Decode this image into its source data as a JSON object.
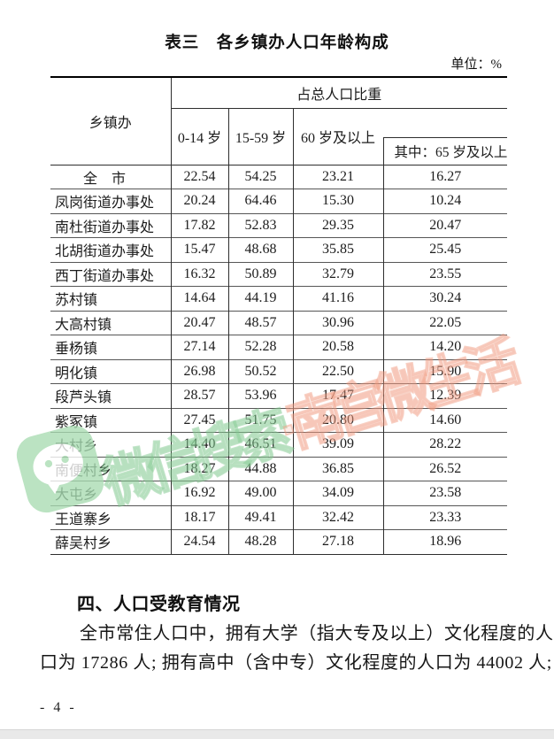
{
  "doc": {
    "title": "表三　各乡镇办人口年龄构成",
    "unit_label": "单位：%",
    "page_number": "- 4 -"
  },
  "table": {
    "header": {
      "region_col": "乡镇办",
      "group": "占总人口比重",
      "age_0_14": "0-14 岁",
      "age_15_59": "15-59 岁",
      "age_60_plus": "60 岁及以上",
      "age_65_plus": "其中：65 岁及以上"
    },
    "rows": [
      {
        "name": "　　全　市",
        "values": [
          "22.54",
          "54.25",
          "23.21",
          "16.27"
        ]
      },
      {
        "name": "凤岗街道办事处",
        "values": [
          "20.24",
          "64.46",
          "15.30",
          "10.24"
        ]
      },
      {
        "name": "南杜街道办事处",
        "values": [
          "17.82",
          "52.83",
          "29.35",
          "20.47"
        ]
      },
      {
        "name": "北胡街道办事处",
        "values": [
          "15.47",
          "48.68",
          "35.85",
          "25.45"
        ]
      },
      {
        "name": "西丁街道办事处",
        "values": [
          "16.32",
          "50.89",
          "32.79",
          "23.55"
        ]
      },
      {
        "name": "苏村镇",
        "values": [
          "14.64",
          "44.19",
          "41.16",
          "30.24"
        ]
      },
      {
        "name": "大高村镇",
        "values": [
          "20.47",
          "48.57",
          "30.96",
          "22.05"
        ]
      },
      {
        "name": "垂杨镇",
        "values": [
          "27.14",
          "52.28",
          "20.58",
          "14.20"
        ]
      },
      {
        "name": "明化镇",
        "values": [
          "26.98",
          "50.52",
          "22.50",
          "15.90"
        ]
      },
      {
        "name": "段芦头镇",
        "values": [
          "28.57",
          "53.96",
          "17.47",
          "12.39"
        ]
      },
      {
        "name": "紫冢镇",
        "values": [
          "27.45",
          "51.75",
          "20.80",
          "14.60"
        ]
      },
      {
        "name": "大村乡",
        "values": [
          "14.40",
          "46.51",
          "39.09",
          "28.22"
        ]
      },
      {
        "name": "南便村乡",
        "values": [
          "18.27",
          "44.88",
          "36.85",
          "26.52"
        ]
      },
      {
        "name": "大屯乡",
        "values": [
          "16.92",
          "49.00",
          "34.09",
          "23.58"
        ]
      },
      {
        "name": "王道寨乡",
        "values": [
          "18.17",
          "49.41",
          "32.42",
          "23.33"
        ]
      },
      {
        "name": "薛吴村乡",
        "values": [
          "24.54",
          "48.28",
          "27.18",
          "18.96"
        ]
      }
    ]
  },
  "section": {
    "heading": "四、人口受教育情况",
    "paragraph_lines": [
      "全市常住人口中，拥有大学（指大专及以上）文化程度的人",
      "口为 17286 人; 拥有高中（含中专）文化程度的人口为 44002 人;"
    ]
  },
  "watermark": {
    "icon": "wechat-icon",
    "green_text": "微信搜索",
    "red_text": "·南宫微生活",
    "green_color": "#7dc68c",
    "red_color": "#f09478"
  }
}
